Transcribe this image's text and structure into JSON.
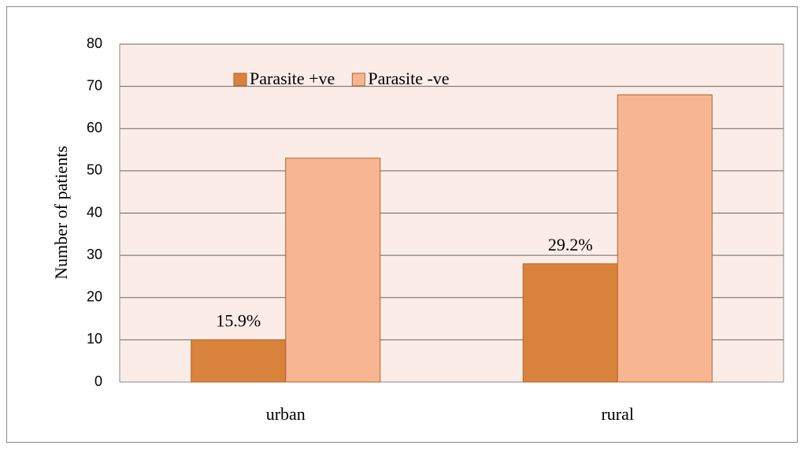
{
  "chart_data": {
    "type": "bar",
    "y_label": "Number of patients",
    "categories": [
      "urban",
      "rural"
    ],
    "series": [
      {
        "name": "Parasite +ve",
        "color": "#d9823b",
        "values": [
          10,
          28
        ]
      },
      {
        "name": "Parasite -ve",
        "color": "#f8b592",
        "values": [
          53,
          68
        ]
      }
    ],
    "annotations": [
      "15.9%",
      "29.2%"
    ],
    "ylim": [
      0,
      80
    ],
    "yticks": [
      0,
      10,
      20,
      30,
      40,
      50,
      60,
      70,
      80
    ],
    "grid": true,
    "legend": "top"
  }
}
